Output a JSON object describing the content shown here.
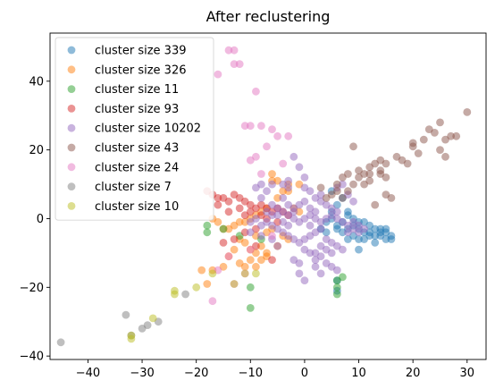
{
  "chart_data": {
    "type": "scatter",
    "title": "After reclustering",
    "xlabel": "",
    "ylabel": "",
    "xlim": [
      -47,
      33.5
    ],
    "ylim": [
      -41,
      54
    ],
    "xticks": [
      -40,
      -30,
      -20,
      -10,
      0,
      10,
      20,
      30
    ],
    "yticks": [
      -40,
      -20,
      0,
      20,
      40
    ],
    "tick_labels_x": [
      "−40",
      "−30",
      "−20",
      "−10",
      "0",
      "10",
      "20",
      "30"
    ],
    "tick_labels_y": [
      "−40",
      "−20",
      "0",
      "20",
      "40"
    ],
    "grid": false,
    "legend_position": "top-left",
    "marker_alpha": 0.5,
    "series": [
      {
        "name": "cluster size 339",
        "color": "#1f77b4",
        "points": [
          [
            4,
            -1
          ],
          [
            5,
            0
          ],
          [
            6,
            -2
          ],
          [
            7,
            -1
          ],
          [
            8,
            -3
          ],
          [
            9,
            -2
          ],
          [
            10,
            -3
          ],
          [
            11,
            -4
          ],
          [
            12,
            -4
          ],
          [
            13,
            -5
          ],
          [
            14,
            -5
          ],
          [
            15,
            -6
          ],
          [
            16,
            -6
          ],
          [
            14,
            -3
          ],
          [
            12,
            -2
          ],
          [
            10,
            -1
          ],
          [
            9,
            0
          ],
          [
            8,
            1
          ],
          [
            7,
            -4
          ],
          [
            11,
            -6
          ],
          [
            13,
            -3
          ],
          [
            15,
            -4
          ],
          [
            6,
            -18
          ],
          [
            6,
            -21
          ],
          [
            10,
            -9
          ],
          [
            9,
            -5
          ],
          [
            5,
            2
          ],
          [
            6,
            4
          ],
          [
            7,
            6
          ],
          [
            5,
            8
          ],
          [
            8,
            -6
          ],
          [
            12,
            -5
          ],
          [
            16,
            -5
          ],
          [
            3,
            -3
          ],
          [
            4,
            -4
          ],
          [
            15,
            -3
          ],
          [
            13,
            -7
          ],
          [
            11,
            -1
          ],
          [
            14,
            -4
          ],
          [
            10,
            -6
          ],
          [
            8,
            2
          ],
          [
            6,
            -3
          ]
        ]
      },
      {
        "name": "cluster size 326",
        "color": "#ff7f0e",
        "points": [
          [
            -6,
            13
          ],
          [
            -3,
            10
          ],
          [
            -1,
            10
          ],
          [
            -3,
            8
          ],
          [
            -4,
            8
          ],
          [
            -5,
            6
          ],
          [
            -7,
            3
          ],
          [
            -8,
            2
          ],
          [
            -9,
            1
          ],
          [
            -10,
            0
          ],
          [
            -11,
            -1
          ],
          [
            -12,
            -1
          ],
          [
            -13,
            -2
          ],
          [
            -14,
            -3
          ],
          [
            -15,
            -3
          ],
          [
            -16,
            -1
          ],
          [
            -17,
            0
          ],
          [
            -9,
            -5
          ],
          [
            -8,
            -8
          ],
          [
            -7,
            -10
          ],
          [
            -7,
            -11
          ],
          [
            -8,
            -12
          ],
          [
            -9,
            -10
          ],
          [
            -10,
            -9
          ],
          [
            -11,
            -7
          ],
          [
            -12,
            -6
          ],
          [
            -13,
            -9
          ],
          [
            -12,
            -13
          ],
          [
            -11,
            -14
          ],
          [
            -14,
            -11
          ],
          [
            -15,
            -14
          ],
          [
            -17,
            -15
          ],
          [
            -19,
            -15
          ],
          [
            -18,
            -19
          ],
          [
            -9,
            -14
          ],
          [
            -5,
            -8
          ],
          [
            -4,
            -5
          ],
          [
            -6,
            -3
          ],
          [
            -5,
            11
          ],
          [
            -6,
            11
          ],
          [
            -2,
            3
          ],
          [
            -1,
            2
          ],
          [
            -3,
            -6
          ],
          [
            -10,
            -12
          ],
          [
            -7,
            -4
          ]
        ]
      },
      {
        "name": "cluster size 11",
        "color": "#2ca02c",
        "points": [
          [
            -18,
            -2
          ],
          [
            -18,
            -4
          ],
          [
            -10,
            -20
          ],
          [
            -10,
            -26
          ],
          [
            6,
            -20
          ],
          [
            6,
            -22
          ],
          [
            -12,
            -5
          ],
          [
            6,
            -18
          ],
          [
            -15,
            -3
          ],
          [
            -8,
            -6
          ],
          [
            7,
            -17
          ]
        ]
      },
      {
        "name": "cluster size 93",
        "color": "#d62728",
        "points": [
          [
            -18,
            8
          ],
          [
            -17,
            7
          ],
          [
            -16,
            6
          ],
          [
            -15,
            6
          ],
          [
            -14,
            5
          ],
          [
            -13,
            7
          ],
          [
            -12,
            6
          ],
          [
            -11,
            5
          ],
          [
            -10,
            4
          ],
          [
            -9,
            3
          ],
          [
            -8,
            4
          ],
          [
            -7,
            3
          ],
          [
            -6,
            2
          ],
          [
            -5,
            3
          ],
          [
            -4,
            2
          ],
          [
            -3,
            1
          ],
          [
            -13,
            -6
          ],
          [
            -11,
            -4
          ],
          [
            -9,
            -8
          ],
          [
            -6,
            -12
          ],
          [
            -14,
            2
          ],
          [
            -16,
            4
          ],
          [
            -12,
            3
          ],
          [
            -10,
            2
          ],
          [
            -8,
            1
          ],
          [
            -15,
            -7
          ],
          [
            -9,
            -3
          ],
          [
            -11,
            1
          ],
          [
            -7,
            0
          ],
          [
            -5,
            -1
          ]
        ]
      },
      {
        "name": "cluster size 10202",
        "color": "#9467bd",
        "points": [
          [
            -9,
            9
          ],
          [
            -8,
            6
          ],
          [
            -6,
            4
          ],
          [
            -5,
            3
          ],
          [
            -4,
            2
          ],
          [
            -3,
            1
          ],
          [
            -2,
            0
          ],
          [
            -1,
            -1
          ],
          [
            0,
            0
          ],
          [
            1,
            1
          ],
          [
            2,
            0
          ],
          [
            3,
            -1
          ],
          [
            4,
            0
          ],
          [
            5,
            1
          ],
          [
            6,
            0
          ],
          [
            7,
            -1
          ],
          [
            8,
            -2
          ],
          [
            9,
            -1
          ],
          [
            10,
            -2
          ],
          [
            -7,
            -1
          ],
          [
            -6,
            -2
          ],
          [
            -5,
            -3
          ],
          [
            -4,
            -4
          ],
          [
            -3,
            -5
          ],
          [
            -2,
            -6
          ],
          [
            -1,
            -7
          ],
          [
            0,
            -6
          ],
          [
            1,
            -5
          ],
          [
            2,
            -4
          ],
          [
            3,
            -3
          ],
          [
            0,
            -9
          ],
          [
            1,
            -10
          ],
          [
            2,
            -12
          ],
          [
            3,
            -11
          ],
          [
            4,
            -13
          ],
          [
            5,
            -14
          ],
          [
            6,
            -15
          ],
          [
            2,
            -14
          ],
          [
            -1,
            -13
          ],
          [
            -2,
            -12
          ],
          [
            -8,
            -5
          ],
          [
            -10,
            -4
          ],
          [
            -6,
            -6
          ],
          [
            0,
            9
          ],
          [
            1,
            8
          ],
          [
            2,
            6
          ],
          [
            3,
            5
          ],
          [
            4,
            4
          ],
          [
            5,
            3
          ],
          [
            6,
            2
          ],
          [
            3,
            7
          ],
          [
            -1,
            15
          ],
          [
            -2,
            18
          ],
          [
            0,
            12
          ],
          [
            -3,
            4
          ],
          [
            -4,
            6
          ],
          [
            -5,
            -8
          ],
          [
            8,
            7
          ],
          [
            9,
            5
          ],
          [
            -7,
            2
          ],
          [
            -8,
            -2
          ],
          [
            -9,
            0
          ],
          [
            -10,
            -1
          ],
          [
            -6,
            10
          ],
          [
            1,
            -2
          ],
          [
            2,
            2
          ],
          [
            -2,
            3
          ],
          [
            -3,
            -2
          ],
          [
            4,
            -6
          ],
          [
            5,
            -7
          ],
          [
            6,
            -8
          ],
          [
            7,
            -9
          ],
          [
            3,
            -16
          ],
          [
            2,
            -10
          ],
          [
            1,
            3
          ],
          [
            0,
            5
          ],
          [
            -1,
            4
          ],
          [
            -2,
            2
          ],
          [
            -4,
            -1
          ],
          [
            -5,
            1
          ],
          [
            -6,
            1
          ],
          [
            -3,
            9
          ],
          [
            6,
            9
          ],
          [
            7,
            10
          ],
          [
            5,
            -10
          ],
          [
            4,
            -9
          ],
          [
            3,
            -8
          ],
          [
            -1,
            -16
          ],
          [
            0,
            -18
          ],
          [
            8,
            -4
          ],
          [
            9,
            -3
          ],
          [
            10,
            -4
          ],
          [
            11,
            -3
          ],
          [
            -8,
            10
          ],
          [
            -7,
            8
          ],
          [
            -4,
            10
          ],
          [
            -3,
            11
          ]
        ]
      },
      {
        "name": "cluster size 43",
        "color": "#8c564b",
        "points": [
          [
            30,
            31
          ],
          [
            25,
            28
          ],
          [
            23,
            26
          ],
          [
            24,
            25
          ],
          [
            26,
            23
          ],
          [
            28,
            24
          ],
          [
            25,
            20
          ],
          [
            26,
            18
          ],
          [
            20,
            22
          ],
          [
            19,
            16
          ],
          [
            18,
            17
          ],
          [
            15,
            16
          ],
          [
            14,
            17
          ],
          [
            13,
            16
          ],
          [
            14,
            14
          ],
          [
            12,
            15
          ],
          [
            11,
            13
          ],
          [
            10,
            14
          ],
          [
            15,
            12
          ],
          [
            12,
            11
          ],
          [
            10,
            12
          ],
          [
            9,
            10
          ],
          [
            8,
            8
          ],
          [
            9,
            21
          ],
          [
            3,
            9
          ],
          [
            5,
            7
          ],
          [
            6,
            8
          ],
          [
            7,
            6
          ],
          [
            15,
            7
          ],
          [
            16,
            6
          ],
          [
            13,
            4
          ],
          [
            4,
            6
          ],
          [
            11,
            10
          ],
          [
            17,
            18
          ],
          [
            27,
            24
          ],
          [
            22,
            23
          ],
          [
            20,
            21
          ],
          [
            14,
            13
          ],
          [
            12,
            13
          ],
          [
            8,
            13
          ],
          [
            7,
            12
          ],
          [
            6,
            10
          ],
          [
            21,
            19
          ]
        ]
      },
      {
        "name": "cluster size 24",
        "color": "#e377c2",
        "points": [
          [
            -14,
            49
          ],
          [
            -13,
            49
          ],
          [
            -13,
            45
          ],
          [
            -12,
            45
          ],
          [
            -16,
            42
          ],
          [
            -9,
            37
          ],
          [
            -11,
            27
          ],
          [
            -10,
            27
          ],
          [
            -8,
            27
          ],
          [
            -6,
            26
          ],
          [
            -5,
            24
          ],
          [
            -3,
            24
          ],
          [
            -9,
            18
          ],
          [
            -10,
            17
          ],
          [
            -7,
            21
          ],
          [
            -4,
            16
          ],
          [
            -8,
            13
          ],
          [
            -17,
            -24
          ],
          [
            -13,
            -19
          ],
          [
            -11,
            -16
          ],
          [
            -16,
            -15
          ],
          [
            -14,
            -11
          ],
          [
            -10,
            -9
          ],
          [
            -6,
            -5
          ]
        ]
      },
      {
        "name": "cluster size 7",
        "color": "#7f7f7f",
        "points": [
          [
            -45,
            -36
          ],
          [
            -33,
            -28
          ],
          [
            -32,
            -34
          ],
          [
            -30,
            -32
          ],
          [
            -29,
            -31
          ],
          [
            -27,
            -30
          ],
          [
            -22,
            -22
          ]
        ]
      },
      {
        "name": "cluster size 10",
        "color": "#bcbd22",
        "points": [
          [
            -32,
            -35
          ],
          [
            -32,
            -34
          ],
          [
            -28,
            -29
          ],
          [
            -24,
            -22
          ],
          [
            -24,
            -21
          ],
          [
            -20,
            -20
          ],
          [
            -17,
            -16
          ],
          [
            -13,
            -19
          ],
          [
            -11,
            -16
          ],
          [
            -9,
            -16
          ]
        ]
      }
    ]
  }
}
